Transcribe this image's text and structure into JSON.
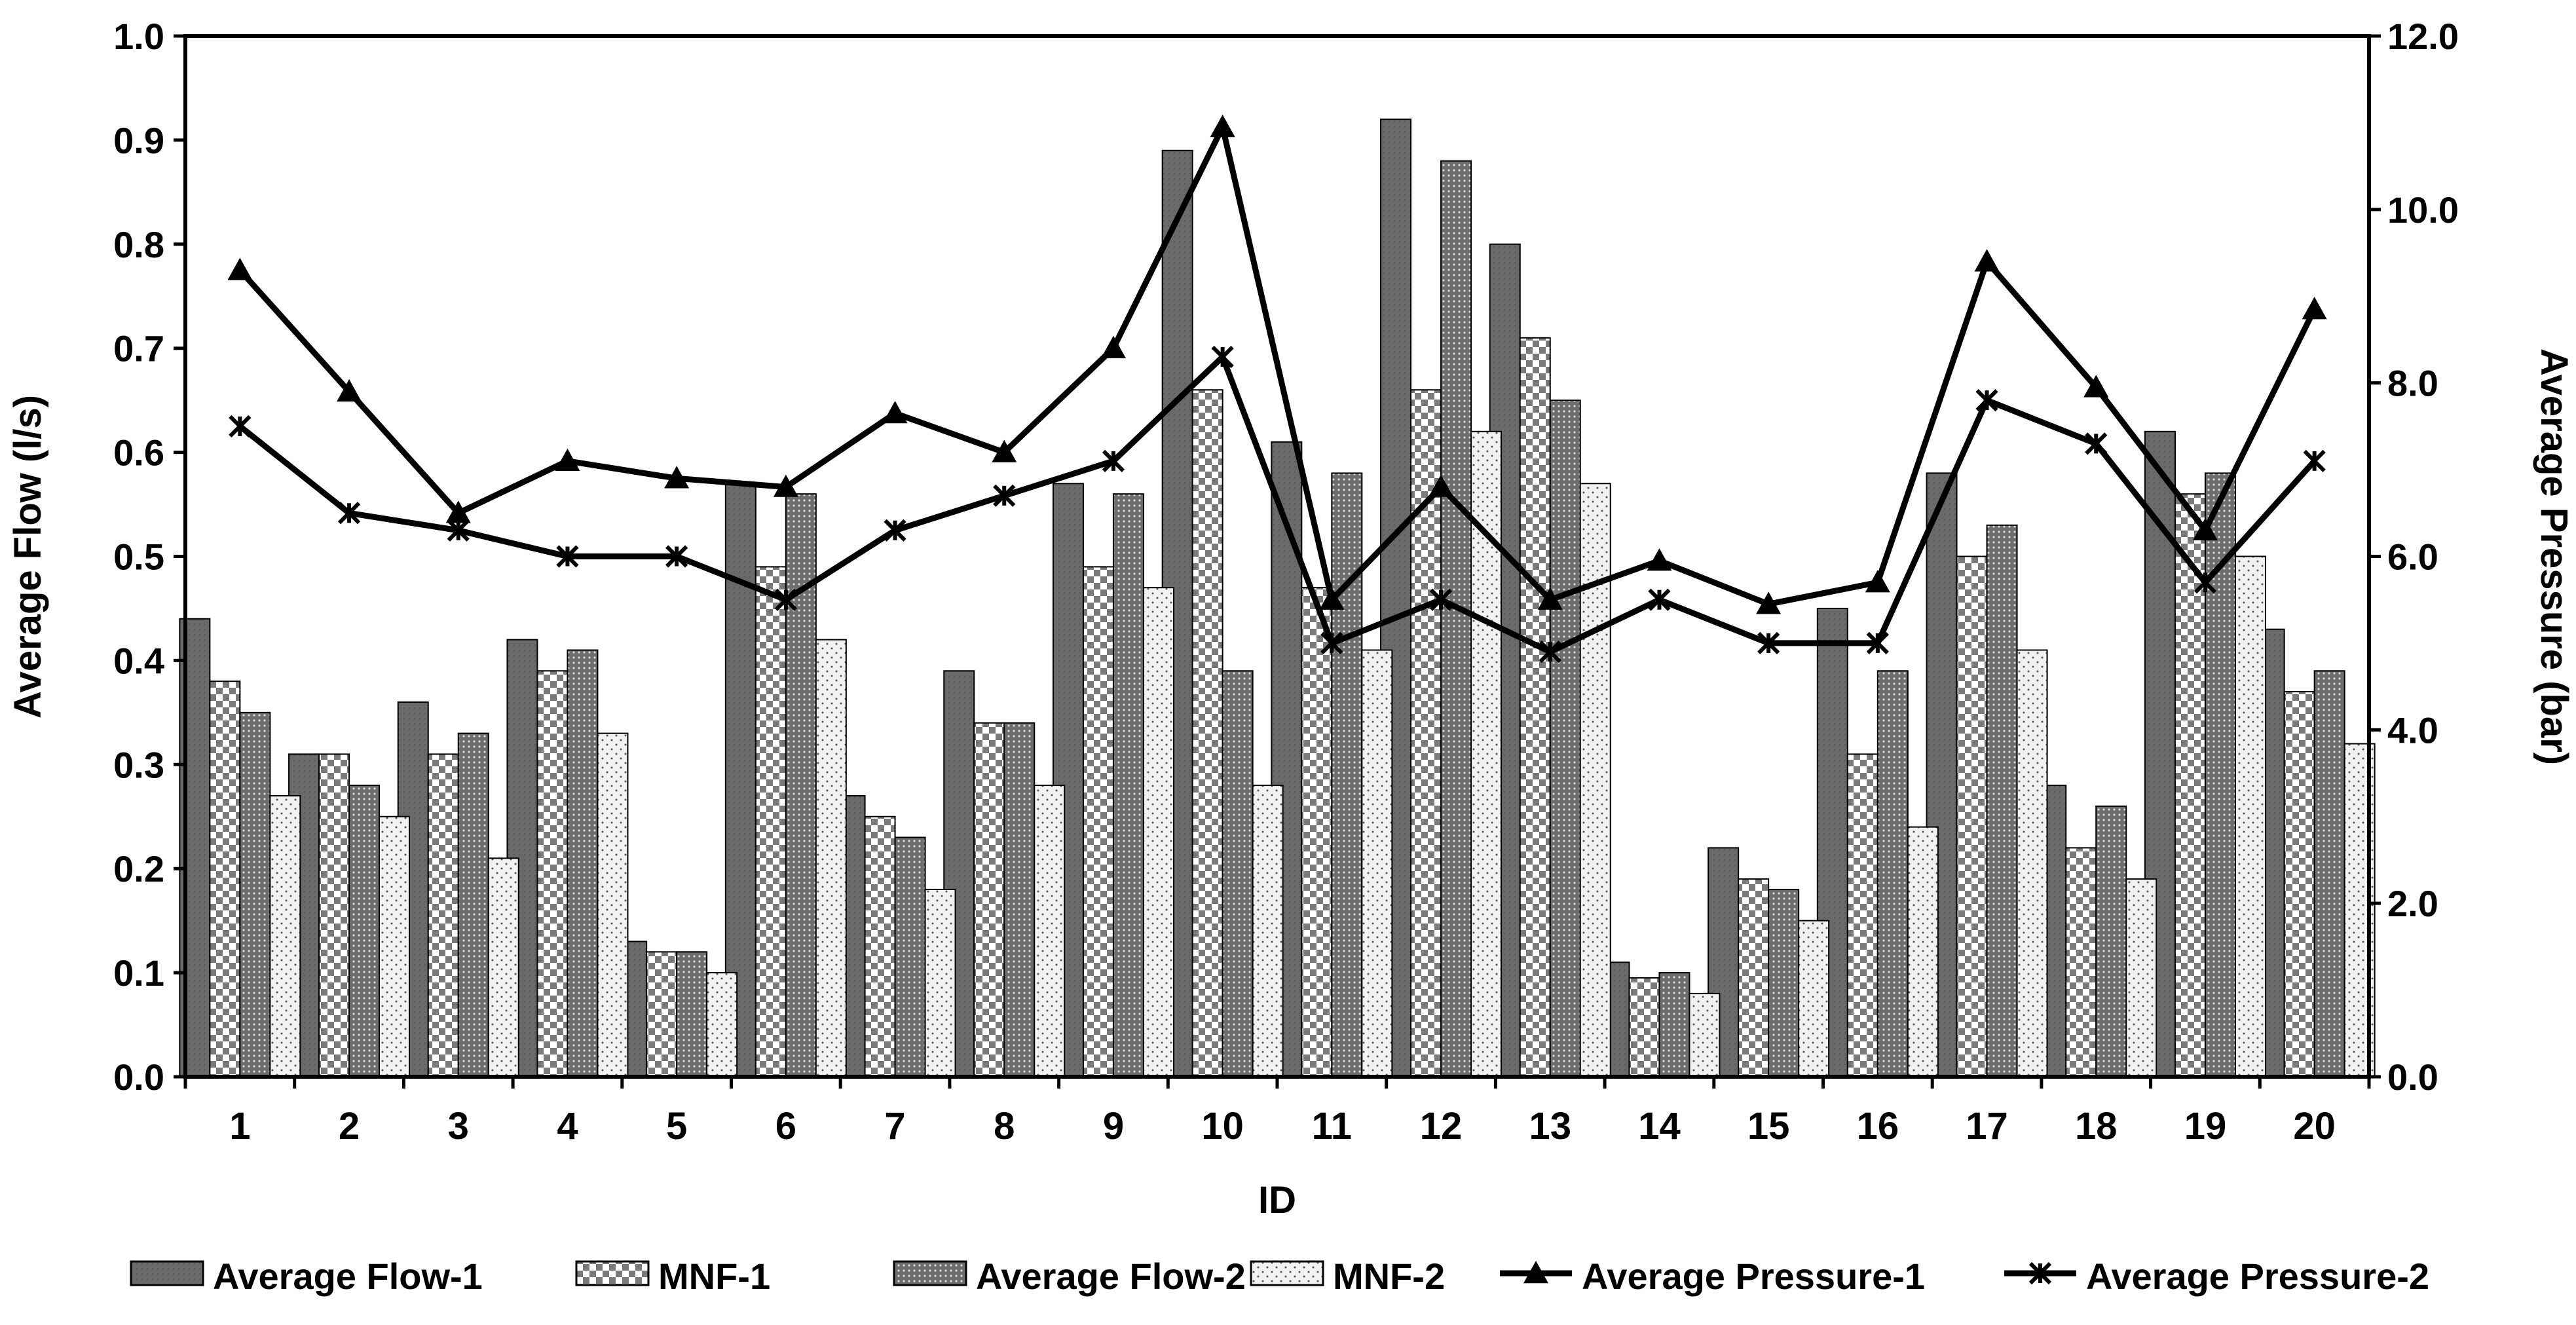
{
  "chart_data": {
    "type": "bar",
    "title": "",
    "xlabel": "ID",
    "ylabel": "Average Flow (l/s)",
    "y2label": "Average Pressure (bar)",
    "ylim": [
      0,
      1.0
    ],
    "y2lim": [
      0,
      12.0
    ],
    "yticks": [
      "0.0",
      "0.1",
      "0.2",
      "0.3",
      "0.4",
      "0.5",
      "0.6",
      "0.7",
      "0.8",
      "0.9",
      "1.0"
    ],
    "y2ticks": [
      "0.0",
      "2.0",
      "4.0",
      "6.0",
      "8.0",
      "10.0",
      "12.0"
    ],
    "categories": [
      "1",
      "2",
      "3",
      "4",
      "5",
      "6",
      "7",
      "8",
      "9",
      "10",
      "11",
      "12",
      "13",
      "14",
      "15",
      "16",
      "17",
      "18",
      "19",
      "20"
    ],
    "legend_position": "bottom",
    "series": [
      {
        "name": "Average Flow-1",
        "type": "bar",
        "axis": "left",
        "style": "dark",
        "values": [
          0.44,
          0.31,
          0.36,
          0.42,
          0.13,
          0.57,
          0.27,
          0.39,
          0.57,
          0.89,
          0.61,
          0.92,
          0.8,
          0.11,
          0.22,
          0.45,
          0.58,
          0.28,
          0.62,
          0.43
        ]
      },
      {
        "name": "MNF-1",
        "type": "bar",
        "axis": "left",
        "style": "checker",
        "values": [
          0.38,
          0.31,
          0.31,
          0.39,
          0.12,
          0.49,
          0.25,
          0.34,
          0.49,
          0.66,
          0.47,
          0.66,
          0.71,
          0.095,
          0.19,
          0.31,
          0.5,
          0.22,
          0.56,
          0.37
        ]
      },
      {
        "name": "Average Flow-2",
        "type": "bar",
        "axis": "left",
        "style": "dotted",
        "values": [
          0.35,
          0.28,
          0.33,
          0.41,
          0.12,
          0.56,
          0.23,
          0.34,
          0.56,
          0.39,
          0.58,
          0.88,
          0.65,
          0.1,
          0.18,
          0.39,
          0.53,
          0.26,
          0.58,
          0.39
        ]
      },
      {
        "name": "MNF-2",
        "type": "bar",
        "axis": "left",
        "style": "light",
        "values": [
          0.27,
          0.25,
          0.21,
          0.33,
          0.1,
          0.42,
          0.18,
          0.28,
          0.47,
          0.28,
          0.41,
          0.62,
          0.57,
          0.08,
          0.15,
          0.24,
          0.41,
          0.19,
          0.5,
          0.32
        ]
      },
      {
        "name": "Average Pressure-1",
        "type": "line",
        "axis": "right",
        "marker": "triangle",
        "values": [
          9.3,
          7.9,
          6.5,
          7.1,
          6.9,
          6.8,
          7.65,
          7.2,
          8.4,
          10.95,
          5.5,
          6.8,
          5.5,
          5.95,
          5.45,
          5.7,
          9.4,
          7.95,
          6.3,
          8.85
        ]
      },
      {
        "name": "Average Pressure-2",
        "type": "line",
        "axis": "right",
        "marker": "star",
        "values": [
          7.5,
          6.5,
          6.3,
          6.0,
          6.0,
          5.5,
          6.3,
          6.7,
          7.1,
          8.3,
          5.0,
          5.5,
          4.9,
          5.5,
          5.0,
          5.0,
          7.8,
          7.3,
          5.7,
          7.1
        ]
      }
    ]
  }
}
